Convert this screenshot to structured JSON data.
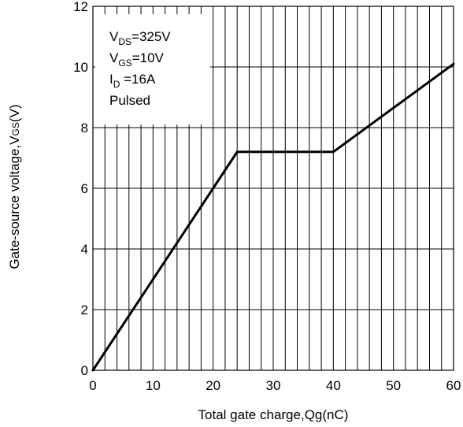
{
  "chart_data": {
    "type": "line",
    "title": "",
    "xlabel": "Total gate charge,Qg(nC)",
    "ylabel": "Gate-source voltage,VGS(V)",
    "ylabel_parts": {
      "main": "Gate-source voltage,V",
      "sub": "GS",
      "tail": "(V)"
    },
    "xlim": [
      0,
      60
    ],
    "ylim": [
      0,
      12
    ],
    "x_ticks": [
      0,
      10,
      20,
      30,
      40,
      50,
      60
    ],
    "y_ticks": [
      0,
      2,
      4,
      6,
      8,
      10,
      12
    ],
    "x_minor_grid_step": 2,
    "y_grid_step": 2,
    "grid": true,
    "series": [
      {
        "x": [
          0,
          24,
          40,
          60
        ],
        "y": [
          0,
          7.2,
          7.2,
          10.1
        ]
      }
    ],
    "annotations": [
      {
        "main": "V",
        "sub": "DS",
        "rest": "=325V"
      },
      {
        "main": "V",
        "sub": "GS",
        "rest": "=10V"
      },
      {
        "main": "I",
        "sub": "D",
        "rest": " =16A"
      },
      {
        "main": "Pulsed",
        "sub": "",
        "rest": ""
      }
    ],
    "legend_placement": "top-left"
  }
}
